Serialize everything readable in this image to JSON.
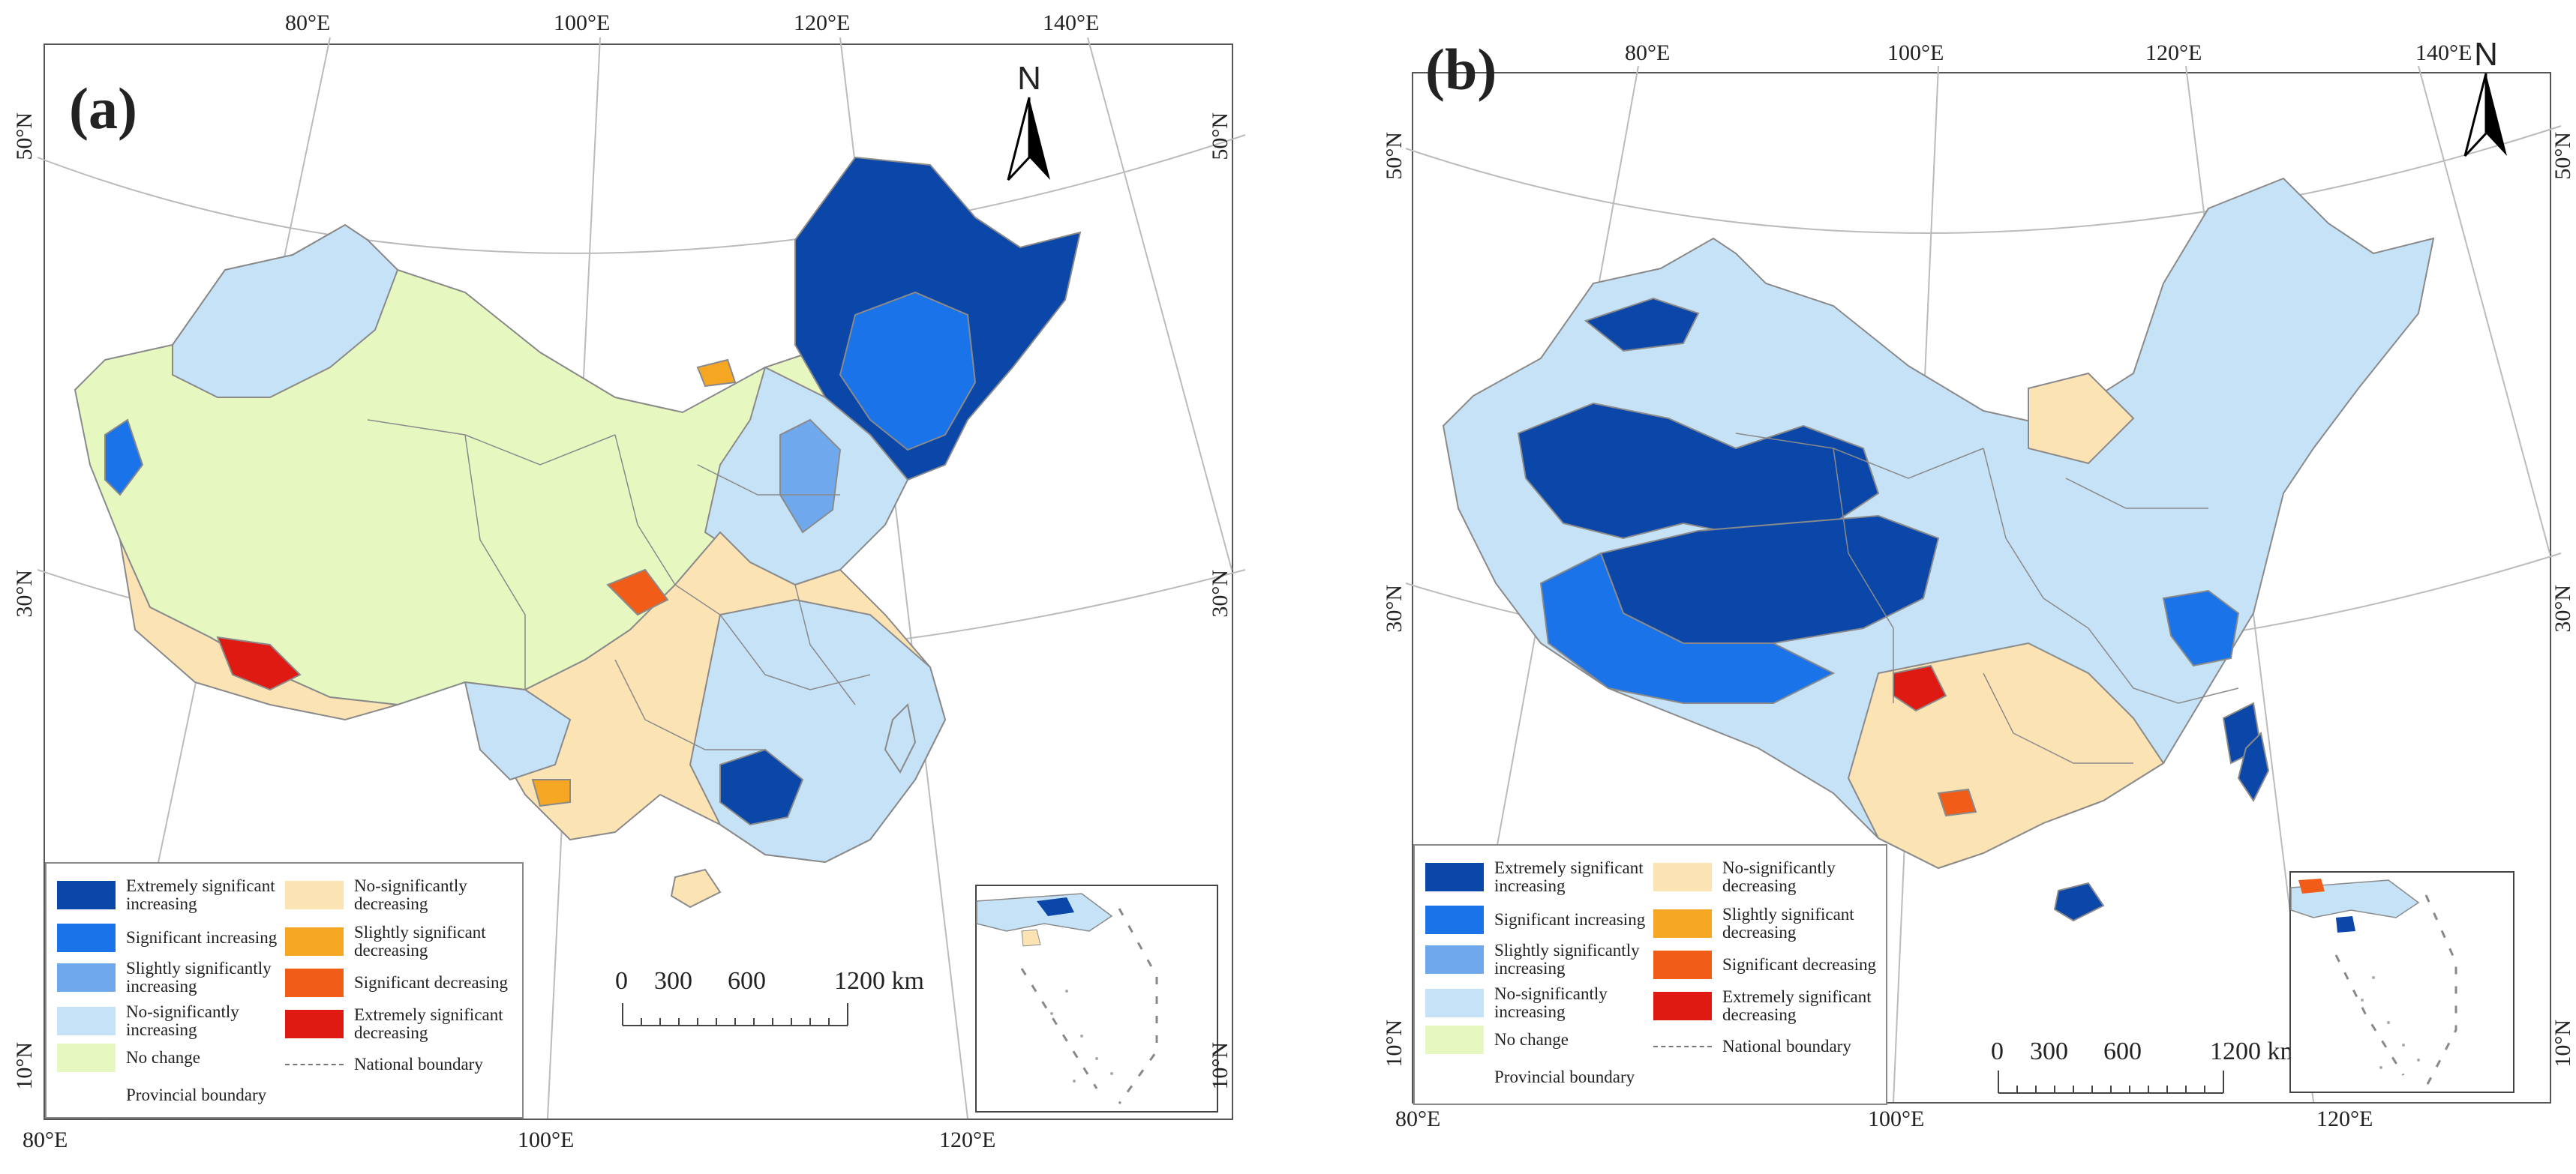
{
  "figure": {
    "panels": [
      {
        "id": "a",
        "label": "(a)",
        "north_label": "N",
        "top_ticks": [
          "80°E",
          "100°E",
          "120°E",
          "140°E"
        ],
        "bottom_ticks": [
          "80°E",
          "100°E",
          "120°E"
        ],
        "left_ticks": [
          "50°N",
          "30°N",
          "10°N"
        ],
        "right_ticks": [
          "50°N",
          "30°N",
          "10°N"
        ],
        "scale": {
          "values": [
            "0",
            "300",
            "600",
            "1200 km"
          ]
        }
      },
      {
        "id": "b",
        "label": "(b)",
        "north_label": "N",
        "top_ticks": [
          "80°E",
          "100°E",
          "120°E",
          "140°E"
        ],
        "bottom_ticks": [
          "80°E",
          "100°E",
          "120°E"
        ],
        "left_ticks": [
          "50°N",
          "30°N",
          "10°N"
        ],
        "right_ticks": [
          "50°N",
          "30°N",
          "10°N"
        ],
        "scale": {
          "values": [
            "0",
            "300",
            "600",
            "1200 km"
          ]
        }
      }
    ]
  },
  "legend": {
    "items": [
      {
        "label": "Extremely significant increasing",
        "color": "#0b47a8"
      },
      {
        "label": "Significant increasing",
        "color": "#1a73e8"
      },
      {
        "label": "Slightly significantly increasing",
        "color": "#6fa8ec"
      },
      {
        "label": "No-significantly increasing",
        "color": "#c6e2f7"
      },
      {
        "label": "No change",
        "color": "#e6f7c0"
      },
      {
        "label": "Provincial boundary",
        "color": "#ffffff"
      },
      {
        "label": "No-significantly decreasing",
        "color": "#fbe3b4"
      },
      {
        "label": "Slightly significant decreasing",
        "color": "#f5a623"
      },
      {
        "label": "Significant decreasing",
        "color": "#f25c19"
      },
      {
        "label": "Extremely significant decreasing",
        "color": "#de1a12"
      },
      {
        "label": "National boundary",
        "color": "#999999"
      }
    ]
  },
  "colors": {
    "graticule": "#bbbbbb",
    "boundary": "#8a8a8a"
  }
}
